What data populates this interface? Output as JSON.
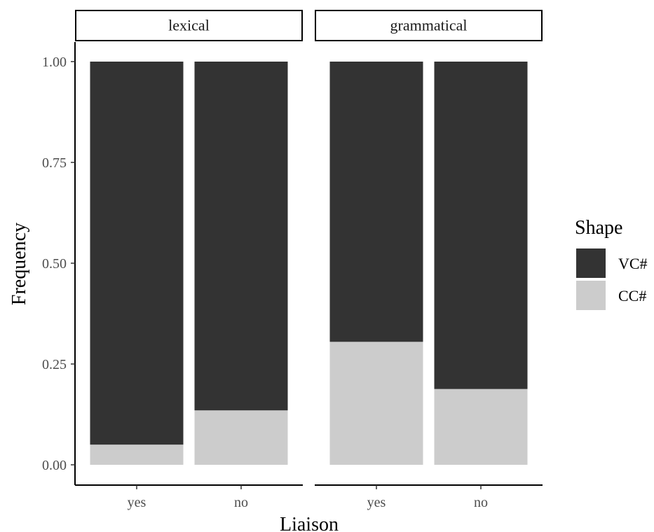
{
  "chart_data": {
    "type": "bar",
    "stacked": true,
    "facets": [
      {
        "label": "lexical",
        "categories": [
          "yes",
          "no"
        ],
        "series": [
          {
            "name": "VC#",
            "values": [
              0.95,
              0.865
            ]
          },
          {
            "name": "CC#",
            "values": [
              0.05,
              0.135
            ]
          }
        ]
      },
      {
        "label": "grammatical",
        "categories": [
          "yes",
          "no"
        ],
        "series": [
          {
            "name": "VC#",
            "values": [
              0.695,
              0.812
            ]
          },
          {
            "name": "CC#",
            "values": [
              0.305,
              0.188
            ]
          }
        ]
      }
    ],
    "xlabel": "Liaison",
    "ylabel": "Frequency",
    "ylim": [
      0,
      1
    ],
    "yticks": [
      "0.00",
      "0.25",
      "0.50",
      "0.75",
      "1.00"
    ],
    "yticks_values": [
      0,
      0.25,
      0.5,
      0.75,
      1.0
    ],
    "grid": false,
    "legend": {
      "title": "Shape",
      "placement": "right",
      "entries": [
        "VC#",
        "CC#"
      ]
    },
    "colors": {
      "VC#": "#333333",
      "CC#": "#cccccc"
    }
  }
}
